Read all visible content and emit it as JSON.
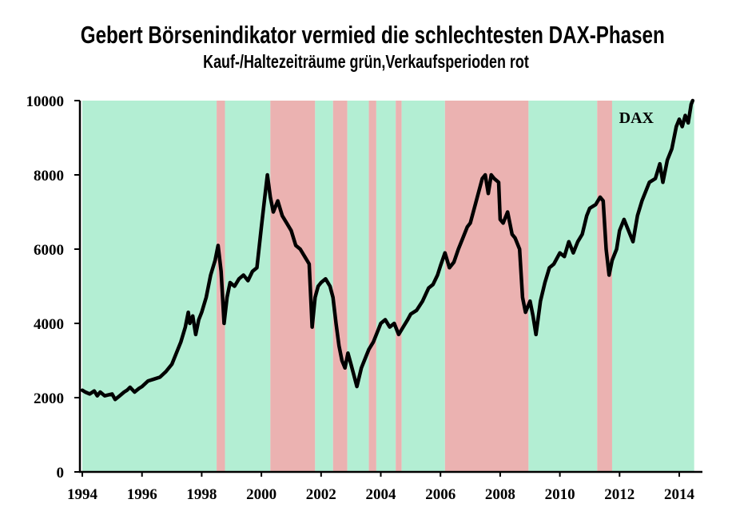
{
  "title": "Gebert Börsenindikator vermied die schlechtesten DAX-Phasen",
  "subtitle": "Kauf-/Haltezeiträume grün,Verkaufsperioden rot",
  "colors": {
    "buy": "#b3eed3",
    "sell": "#ebb2b1",
    "line": "#000000"
  },
  "chart_data": {
    "type": "line",
    "title": "Gebert Börsenindikator vermied die schlechtesten DAX-Phasen",
    "subtitle": "Kauf-/Haltezeiträume grün,Verkaufsperioden rot",
    "xlabel": "",
    "ylabel": "",
    "xlim": [
      1994.0,
      2014.5
    ],
    "ylim": [
      0,
      10000
    ],
    "x_ticks": [
      1994,
      1996,
      1998,
      2000,
      2002,
      2004,
      2006,
      2008,
      2010,
      2012,
      2014
    ],
    "y_ticks": [
      0,
      2000,
      4000,
      6000,
      8000,
      10000
    ],
    "grid": false,
    "series": [
      {
        "name": "DAX",
        "points": [
          [
            1994.0,
            2200
          ],
          [
            1994.1,
            2150
          ],
          [
            1994.25,
            2100
          ],
          [
            1994.4,
            2180
          ],
          [
            1994.5,
            2050
          ],
          [
            1994.6,
            2150
          ],
          [
            1994.75,
            2050
          ],
          [
            1994.9,
            2080
          ],
          [
            1995.0,
            2100
          ],
          [
            1995.1,
            1950
          ],
          [
            1995.25,
            2050
          ],
          [
            1995.4,
            2150
          ],
          [
            1995.5,
            2200
          ],
          [
            1995.6,
            2280
          ],
          [
            1995.75,
            2150
          ],
          [
            1995.9,
            2250
          ],
          [
            1996.0,
            2300
          ],
          [
            1996.2,
            2450
          ],
          [
            1996.4,
            2500
          ],
          [
            1996.6,
            2550
          ],
          [
            1996.8,
            2700
          ],
          [
            1997.0,
            2900
          ],
          [
            1997.15,
            3200
          ],
          [
            1997.3,
            3500
          ],
          [
            1997.45,
            3900
          ],
          [
            1997.55,
            4300
          ],
          [
            1997.6,
            4000
          ],
          [
            1997.7,
            4200
          ],
          [
            1997.8,
            3700
          ],
          [
            1997.9,
            4100
          ],
          [
            1998.0,
            4300
          ],
          [
            1998.15,
            4700
          ],
          [
            1998.3,
            5300
          ],
          [
            1998.45,
            5700
          ],
          [
            1998.55,
            6100
          ],
          [
            1998.65,
            5400
          ],
          [
            1998.75,
            4000
          ],
          [
            1998.85,
            4700
          ],
          [
            1998.95,
            5100
          ],
          [
            1999.1,
            5000
          ],
          [
            1999.25,
            5200
          ],
          [
            1999.4,
            5300
          ],
          [
            1999.55,
            5150
          ],
          [
            1999.7,
            5400
          ],
          [
            1999.85,
            5500
          ],
          [
            2000.0,
            6600
          ],
          [
            2000.1,
            7300
          ],
          [
            2000.2,
            8000
          ],
          [
            2000.3,
            7400
          ],
          [
            2000.4,
            7000
          ],
          [
            2000.55,
            7300
          ],
          [
            2000.7,
            6900
          ],
          [
            2000.85,
            6700
          ],
          [
            2001.0,
            6500
          ],
          [
            2001.15,
            6100
          ],
          [
            2001.3,
            6000
          ],
          [
            2001.45,
            5800
          ],
          [
            2001.6,
            5600
          ],
          [
            2001.7,
            3900
          ],
          [
            2001.8,
            4700
          ],
          [
            2001.9,
            5000
          ],
          [
            2002.0,
            5100
          ],
          [
            2002.15,
            5200
          ],
          [
            2002.3,
            5000
          ],
          [
            2002.4,
            4700
          ],
          [
            2002.5,
            4000
          ],
          [
            2002.6,
            3400
          ],
          [
            2002.7,
            3000
          ],
          [
            2002.8,
            2800
          ],
          [
            2002.9,
            3200
          ],
          [
            2003.0,
            2900
          ],
          [
            2003.1,
            2600
          ],
          [
            2003.2,
            2300
          ],
          [
            2003.35,
            2800
          ],
          [
            2003.5,
            3100
          ],
          [
            2003.6,
            3300
          ],
          [
            2003.75,
            3500
          ],
          [
            2003.9,
            3800
          ],
          [
            2004.0,
            4000
          ],
          [
            2004.15,
            4100
          ],
          [
            2004.3,
            3900
          ],
          [
            2004.45,
            4000
          ],
          [
            2004.6,
            3700
          ],
          [
            2004.75,
            3900
          ],
          [
            2004.9,
            4100
          ],
          [
            2005.0,
            4250
          ],
          [
            2005.2,
            4350
          ],
          [
            2005.4,
            4600
          ],
          [
            2005.6,
            4950
          ],
          [
            2005.75,
            5050
          ],
          [
            2005.9,
            5300
          ],
          [
            2006.0,
            5550
          ],
          [
            2006.15,
            5900
          ],
          [
            2006.3,
            5500
          ],
          [
            2006.45,
            5650
          ],
          [
            2006.6,
            6000
          ],
          [
            2006.75,
            6300
          ],
          [
            2006.9,
            6600
          ],
          [
            2007.0,
            6700
          ],
          [
            2007.2,
            7300
          ],
          [
            2007.4,
            7900
          ],
          [
            2007.5,
            8000
          ],
          [
            2007.6,
            7500
          ],
          [
            2007.7,
            8000
          ],
          [
            2007.8,
            7900
          ],
          [
            2007.95,
            7800
          ],
          [
            2008.0,
            6800
          ],
          [
            2008.1,
            6700
          ],
          [
            2008.25,
            7000
          ],
          [
            2008.4,
            6400
          ],
          [
            2008.5,
            6300
          ],
          [
            2008.65,
            6000
          ],
          [
            2008.75,
            4700
          ],
          [
            2008.85,
            4300
          ],
          [
            2009.0,
            4600
          ],
          [
            2009.1,
            4200
          ],
          [
            2009.2,
            3700
          ],
          [
            2009.35,
            4600
          ],
          [
            2009.5,
            5100
          ],
          [
            2009.65,
            5500
          ],
          [
            2009.8,
            5600
          ],
          [
            2010.0,
            5900
          ],
          [
            2010.15,
            5800
          ],
          [
            2010.3,
            6200
          ],
          [
            2010.45,
            5900
          ],
          [
            2010.6,
            6200
          ],
          [
            2010.75,
            6400
          ],
          [
            2010.9,
            6900
          ],
          [
            2011.0,
            7100
          ],
          [
            2011.2,
            7200
          ],
          [
            2011.35,
            7400
          ],
          [
            2011.45,
            7300
          ],
          [
            2011.55,
            6000
          ],
          [
            2011.65,
            5300
          ],
          [
            2011.75,
            5700
          ],
          [
            2011.9,
            6000
          ],
          [
            2012.0,
            6500
          ],
          [
            2012.15,
            6800
          ],
          [
            2012.3,
            6500
          ],
          [
            2012.45,
            6200
          ],
          [
            2012.6,
            6900
          ],
          [
            2012.75,
            7300
          ],
          [
            2012.9,
            7600
          ],
          [
            2013.0,
            7800
          ],
          [
            2013.2,
            7900
          ],
          [
            2013.35,
            8300
          ],
          [
            2013.45,
            7800
          ],
          [
            2013.6,
            8400
          ],
          [
            2013.75,
            8700
          ],
          [
            2013.9,
            9300
          ],
          [
            2014.0,
            9500
          ],
          [
            2014.1,
            9300
          ],
          [
            2014.2,
            9600
          ],
          [
            2014.3,
            9400
          ],
          [
            2014.4,
            9900
          ],
          [
            2014.45,
            10000
          ]
        ]
      }
    ],
    "bands": [
      {
        "signal": "buy",
        "start": 1994.0,
        "end": 1998.5
      },
      {
        "signal": "sell",
        "start": 1998.5,
        "end": 1998.78
      },
      {
        "signal": "buy",
        "start": 1998.78,
        "end": 2000.3
      },
      {
        "signal": "sell",
        "start": 2000.3,
        "end": 2001.8
      },
      {
        "signal": "buy",
        "start": 2001.8,
        "end": 2002.4
      },
      {
        "signal": "sell",
        "start": 2002.4,
        "end": 2002.88
      },
      {
        "signal": "buy",
        "start": 2002.88,
        "end": 2003.6
      },
      {
        "signal": "sell",
        "start": 2003.6,
        "end": 2003.85
      },
      {
        "signal": "buy",
        "start": 2003.85,
        "end": 2004.5
      },
      {
        "signal": "sell",
        "start": 2004.5,
        "end": 2004.7
      },
      {
        "signal": "buy",
        "start": 2004.7,
        "end": 2006.15
      },
      {
        "signal": "sell",
        "start": 2006.15,
        "end": 2008.95
      },
      {
        "signal": "buy",
        "start": 2008.95,
        "end": 2011.25
      },
      {
        "signal": "sell",
        "start": 2011.25,
        "end": 2011.75
      },
      {
        "signal": "buy",
        "start": 2011.75,
        "end": 2014.5
      }
    ],
    "annotations": [
      {
        "text": "DAX",
        "x": 2013.0,
        "y": 9700
      }
    ]
  }
}
